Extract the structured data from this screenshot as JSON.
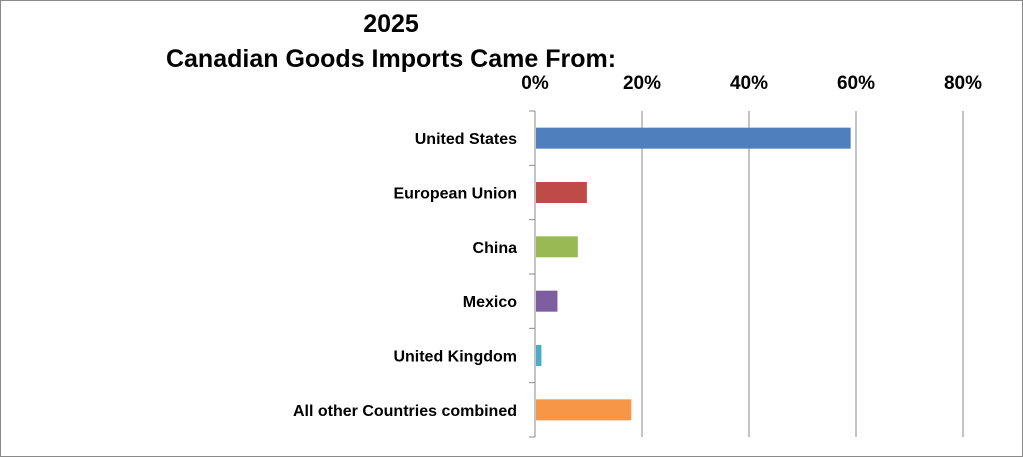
{
  "chart_data": {
    "type": "bar",
    "orientation": "horizontal",
    "title_line1": "2025",
    "title_line2": "Canadian Goods Imports Came From:",
    "xlabel": "",
    "ylabel": "",
    "categories": [
      "United States",
      "European Union",
      "China",
      "Mexico",
      "United Kingdom",
      "All other Countries combined"
    ],
    "values": [
      59,
      9.7,
      8,
      4.2,
      1.2,
      18
    ],
    "colors": [
      "#4F7FBC",
      "#BE4B48",
      "#98B954",
      "#7D5FA0",
      "#4AACC6",
      "#F79646"
    ],
    "xlim": [
      0,
      80
    ],
    "x_ticks": [
      "0%",
      "20%",
      "40%",
      "60%",
      "80%"
    ],
    "x_axis_position": "top",
    "grid": "vertical",
    "legend": "none"
  }
}
